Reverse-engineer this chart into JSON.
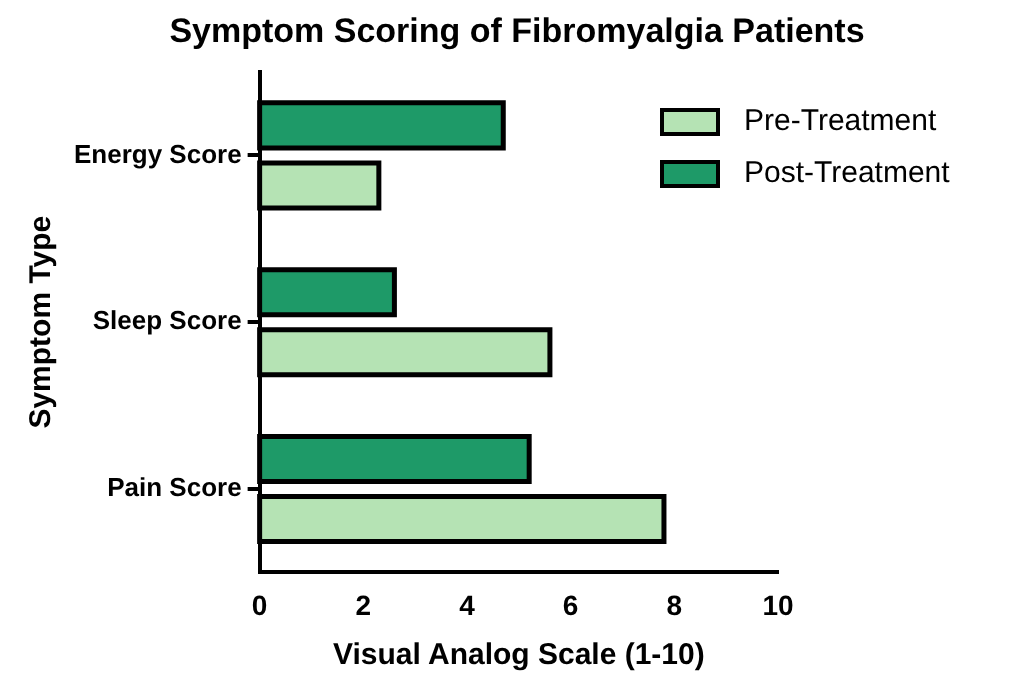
{
  "chart_data": {
    "type": "bar",
    "orientation": "horizontal",
    "title": "Symptom Scoring of Fibromyalgia Patients",
    "xlabel": "Visual Analog Scale (1-10)",
    "ylabel": "Symptom Type",
    "categories": [
      "Energy Score",
      "Sleep Score",
      "Pain Score"
    ],
    "series": [
      {
        "name": "Pre-Treatment",
        "color": "#b5e3b4",
        "values": [
          2.3,
          5.6,
          7.8
        ]
      },
      {
        "name": "Post-Treatment",
        "color": "#1e9a68",
        "values": [
          4.7,
          2.6,
          5.2
        ]
      }
    ],
    "xlim": [
      0,
      10
    ],
    "xticks": [
      0,
      2,
      4,
      6,
      8,
      10
    ],
    "grid": false,
    "legend": "top right"
  }
}
